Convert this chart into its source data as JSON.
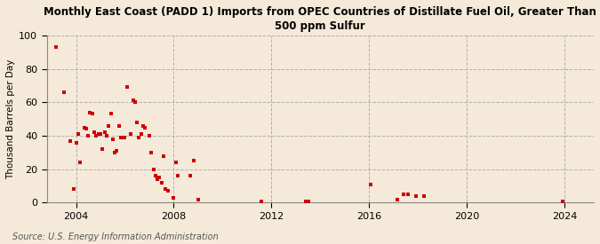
{
  "title": "Monthly East Coast (PADD 1) Imports from OPEC Countries of Distillate Fuel Oil, Greater Than\n500 ppm Sulfur",
  "ylabel": "Thousand Barrels per Day",
  "source": "Source: U.S. Energy Information Administration",
  "background_color": "#f5ead9",
  "marker_color": "#cc0000",
  "xlim": [
    2002.8,
    2025.2
  ],
  "ylim": [
    0,
    100
  ],
  "xticks": [
    2004,
    2008,
    2012,
    2016,
    2020,
    2024
  ],
  "yticks": [
    0,
    20,
    40,
    60,
    80,
    100
  ],
  "data_x": [
    2003.17,
    2003.5,
    2003.75,
    2003.92,
    2004.0,
    2004.08,
    2004.17,
    2004.33,
    2004.42,
    2004.5,
    2004.58,
    2004.67,
    2004.75,
    2004.83,
    2004.92,
    2005.0,
    2005.08,
    2005.17,
    2005.25,
    2005.33,
    2005.42,
    2005.5,
    2005.58,
    2005.67,
    2005.75,
    2005.83,
    2006.0,
    2006.08,
    2006.25,
    2006.33,
    2006.42,
    2006.5,
    2006.58,
    2006.67,
    2006.75,
    2006.83,
    2007.0,
    2007.08,
    2007.17,
    2007.25,
    2007.33,
    2007.42,
    2007.5,
    2007.58,
    2007.67,
    2007.75,
    2008.0,
    2008.08,
    2008.17,
    2008.67,
    2008.83,
    2009.0,
    2011.58,
    2013.42,
    2013.5,
    2016.08,
    2017.17,
    2017.42,
    2017.58,
    2017.92,
    2018.25,
    2023.92
  ],
  "data_y": [
    93,
    66,
    37,
    8,
    36,
    41,
    24,
    45,
    44,
    40,
    54,
    53,
    42,
    40,
    41,
    41,
    32,
    42,
    40,
    46,
    53,
    38,
    30,
    31,
    46,
    39,
    39,
    69,
    41,
    61,
    60,
    48,
    39,
    41,
    46,
    45,
    40,
    30,
    20,
    16,
    14,
    15,
    12,
    28,
    8,
    7,
    3,
    24,
    16,
    16,
    25,
    2,
    1,
    1,
    1,
    11,
    2,
    5,
    5,
    4,
    4,
    1
  ]
}
